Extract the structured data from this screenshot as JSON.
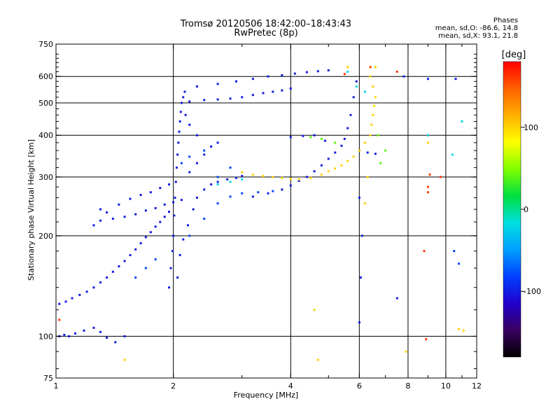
{
  "title": {
    "line1": "Tromsø 20120506 18:42:00–18:43:43",
    "line2": "RwPretec (8p)"
  },
  "phases": {
    "header": "Phases",
    "line_o": "mean, sd,O: -86.6, 14.8",
    "line_x": "mean, sd,X:  93.1, 21.8"
  },
  "colorbar": {
    "label": "[deg]",
    "ticks": [
      100,
      0,
      -100
    ],
    "range": [
      -180,
      180
    ],
    "colormap": [
      "#000000",
      "#3a0060",
      "#2200cc",
      "#0040ff",
      "#00a0ff",
      "#00e0e0",
      "#00e040",
      "#80ff00",
      "#ffff00",
      "#ffb000",
      "#ff6000",
      "#ff0000"
    ]
  },
  "chart_data": {
    "type": "scatter",
    "title": "Tromsø 20120506 18:42:00–18:43:43",
    "subtitle": "RwPretec (8p)",
    "xlabel": "Frequency [MHz]",
    "ylabel": "Stationary phase Virtual Height [km]",
    "xscale": "log",
    "yscale": "log",
    "xlim": [
      1,
      12
    ],
    "ylim": [
      75,
      750
    ],
    "xticks": [
      1,
      2,
      4,
      6,
      8,
      10,
      12
    ],
    "yticks": [
      75,
      100,
      200,
      300,
      400,
      500,
      600,
      750
    ],
    "grid_x": [
      2,
      4,
      6,
      8,
      10
    ],
    "grid_y": [
      100,
      200,
      300,
      400,
      500,
      600
    ],
    "series": [
      {
        "phase_deg": -100,
        "points": [
          [
            1.02,
            100
          ],
          [
            1.05,
            101
          ],
          [
            1.08,
            100
          ],
          [
            1.12,
            102
          ],
          [
            1.18,
            104
          ],
          [
            1.25,
            106
          ],
          [
            1.3,
            103
          ],
          [
            1.35,
            99
          ],
          [
            1.42,
            96
          ],
          [
            1.5,
            100
          ],
          [
            1.02,
            125
          ],
          [
            1.06,
            127
          ],
          [
            1.1,
            130
          ],
          [
            1.15,
            133
          ],
          [
            1.2,
            136
          ],
          [
            1.25,
            140
          ],
          [
            1.3,
            145
          ],
          [
            1.35,
            150
          ],
          [
            1.4,
            156
          ],
          [
            1.45,
            162
          ],
          [
            1.5,
            168
          ],
          [
            1.55,
            175
          ],
          [
            1.6,
            182
          ],
          [
            1.65,
            190
          ],
          [
            1.7,
            198
          ],
          [
            1.75,
            205
          ],
          [
            1.8,
            213
          ],
          [
            1.85,
            220
          ],
          [
            1.9,
            228
          ],
          [
            1.95,
            236
          ],
          [
            1.25,
            215
          ],
          [
            1.3,
            222
          ],
          [
            1.4,
            225
          ],
          [
            1.5,
            228
          ],
          [
            1.6,
            232
          ],
          [
            1.7,
            238
          ],
          [
            1.8,
            242
          ],
          [
            1.9,
            248
          ],
          [
            2.0,
            252
          ],
          [
            2.1,
            256
          ],
          [
            1.3,
            240
          ],
          [
            1.35,
            235
          ],
          [
            1.45,
            248
          ],
          [
            1.55,
            258
          ],
          [
            1.65,
            265
          ],
          [
            1.75,
            270
          ],
          [
            1.85,
            278
          ],
          [
            1.95,
            285
          ],
          [
            1.95,
            140
          ],
          [
            1.97,
            160
          ],
          [
            1.99,
            180
          ],
          [
            2.0,
            200
          ],
          [
            2.01,
            230
          ],
          [
            2.02,
            260
          ],
          [
            2.03,
            290
          ],
          [
            2.04,
            320
          ],
          [
            2.05,
            350
          ],
          [
            2.06,
            380
          ],
          [
            2.07,
            410
          ],
          [
            2.08,
            440
          ],
          [
            2.09,
            470
          ],
          [
            2.1,
            500
          ],
          [
            2.12,
            520
          ],
          [
            2.14,
            540
          ],
          [
            2.05,
            150
          ],
          [
            2.08,
            175
          ],
          [
            2.12,
            195
          ],
          [
            2.18,
            215
          ],
          [
            2.25,
            240
          ],
          [
            2.3,
            260
          ],
          [
            2.4,
            275
          ],
          [
            2.5,
            285
          ],
          [
            2.6,
            290
          ],
          [
            2.75,
            295
          ],
          [
            2.9,
            298
          ],
          [
            3.0,
            302
          ],
          [
            2.2,
            310
          ],
          [
            2.3,
            330
          ],
          [
            2.4,
            350
          ],
          [
            2.5,
            370
          ],
          [
            2.6,
            380
          ],
          [
            2.3,
            400
          ],
          [
            2.2,
            430
          ],
          [
            2.15,
            460
          ],
          [
            2.2,
            505
          ],
          [
            2.4,
            510
          ],
          [
            2.6,
            512
          ],
          [
            2.8,
            515
          ],
          [
            3.0,
            520
          ],
          [
            3.2,
            528
          ],
          [
            3.4,
            535
          ],
          [
            3.6,
            540
          ],
          [
            3.8,
            545
          ],
          [
            4.0,
            552
          ],
          [
            2.3,
            560
          ],
          [
            2.6,
            570
          ],
          [
            2.9,
            580
          ],
          [
            3.2,
            590
          ],
          [
            3.5,
            600
          ],
          [
            3.8,
            605
          ],
          [
            4.1,
            612
          ],
          [
            4.4,
            618
          ],
          [
            4.7,
            622
          ],
          [
            5.0,
            626
          ],
          [
            3.2,
            262
          ],
          [
            3.5,
            268
          ],
          [
            3.8,
            275
          ],
          [
            4.0,
            283
          ],
          [
            4.2,
            292
          ],
          [
            4.4,
            300
          ],
          [
            4.6,
            312
          ],
          [
            4.8,
            325
          ],
          [
            5.0,
            340
          ],
          [
            5.2,
            355
          ],
          [
            5.4,
            372
          ],
          [
            5.5,
            390
          ],
          [
            5.6,
            420
          ],
          [
            5.7,
            460
          ],
          [
            5.8,
            520
          ],
          [
            5.9,
            580
          ],
          [
            4.0,
            395
          ],
          [
            4.3,
            398
          ],
          [
            4.6,
            400
          ],
          [
            4.9,
            385
          ],
          [
            6.0,
            360
          ],
          [
            6.3,
            355
          ],
          [
            6.6,
            352
          ],
          [
            6.0,
            110
          ],
          [
            6.05,
            150
          ],
          [
            6.1,
            200
          ],
          [
            6.0,
            260
          ],
          [
            7.5,
            130
          ],
          [
            7.8,
            600
          ],
          [
            9.0,
            590
          ],
          [
            10.6,
            590
          ]
        ]
      },
      {
        "phase_deg": -80,
        "points": [
          [
            1.6,
            150
          ],
          [
            1.7,
            160
          ],
          [
            1.8,
            170
          ],
          [
            2.2,
            200
          ],
          [
            2.4,
            225
          ],
          [
            2.6,
            250
          ],
          [
            2.8,
            262
          ],
          [
            3.0,
            268
          ],
          [
            3.3,
            270
          ],
          [
            3.6,
            272
          ],
          [
            2.1,
            330
          ],
          [
            2.2,
            345
          ],
          [
            2.4,
            360
          ],
          [
            2.6,
            300
          ],
          [
            2.8,
            320
          ],
          [
            10.8,
            165
          ],
          [
            10.5,
            180
          ]
        ]
      },
      {
        "phase_deg": -20,
        "points": [
          [
            2.6,
            285
          ],
          [
            2.8,
            290
          ],
          [
            3.0,
            295
          ],
          [
            5.6,
            620
          ],
          [
            5.9,
            560
          ],
          [
            6.2,
            540
          ],
          [
            10.4,
            350
          ],
          [
            11.0,
            440
          ],
          [
            9.0,
            400
          ]
        ]
      },
      {
        "phase_deg": 40,
        "points": [
          [
            4.5,
            395
          ],
          [
            4.8,
            390
          ],
          [
            5.2,
            380
          ],
          [
            6.8,
            330
          ],
          [
            7.0,
            360
          ],
          [
            6.7,
            400
          ]
        ]
      },
      {
        "phase_deg": 100,
        "points": [
          [
            3.0,
            310
          ],
          [
            3.2,
            305
          ],
          [
            3.4,
            302
          ],
          [
            3.6,
            300
          ],
          [
            3.8,
            298
          ],
          [
            4.0,
            296
          ],
          [
            4.2,
            295
          ],
          [
            4.5,
            298
          ],
          [
            4.8,
            305
          ],
          [
            5.0,
            312
          ],
          [
            5.2,
            318
          ],
          [
            5.4,
            325
          ],
          [
            5.6,
            335
          ],
          [
            5.8,
            345
          ],
          [
            6.0,
            360
          ],
          [
            6.2,
            380
          ],
          [
            6.4,
            400
          ],
          [
            6.45,
            430
          ],
          [
            6.5,
            460
          ],
          [
            6.55,
            490
          ],
          [
            6.6,
            520
          ],
          [
            6.5,
            560
          ],
          [
            6.4,
            600
          ],
          [
            6.6,
            640
          ],
          [
            6.3,
            300
          ],
          [
            4.6,
            120
          ],
          [
            4.7,
            85
          ],
          [
            10.8,
            105
          ],
          [
            1.5,
            85
          ],
          [
            6.2,
            250
          ],
          [
            9.0,
            380
          ],
          [
            11.1,
            104
          ],
          [
            5.6,
            640
          ],
          [
            7.9,
            90
          ]
        ]
      },
      {
        "phase_deg": 160,
        "points": [
          [
            1.02,
            112
          ],
          [
            5.5,
            610
          ],
          [
            6.4,
            640
          ],
          [
            7.5,
            620
          ],
          [
            8.9,
            98
          ],
          [
            9.0,
            280
          ],
          [
            9.0,
            270
          ],
          [
            8.8,
            180
          ],
          [
            9.1,
            305
          ],
          [
            9.7,
            300
          ]
        ]
      }
    ]
  }
}
